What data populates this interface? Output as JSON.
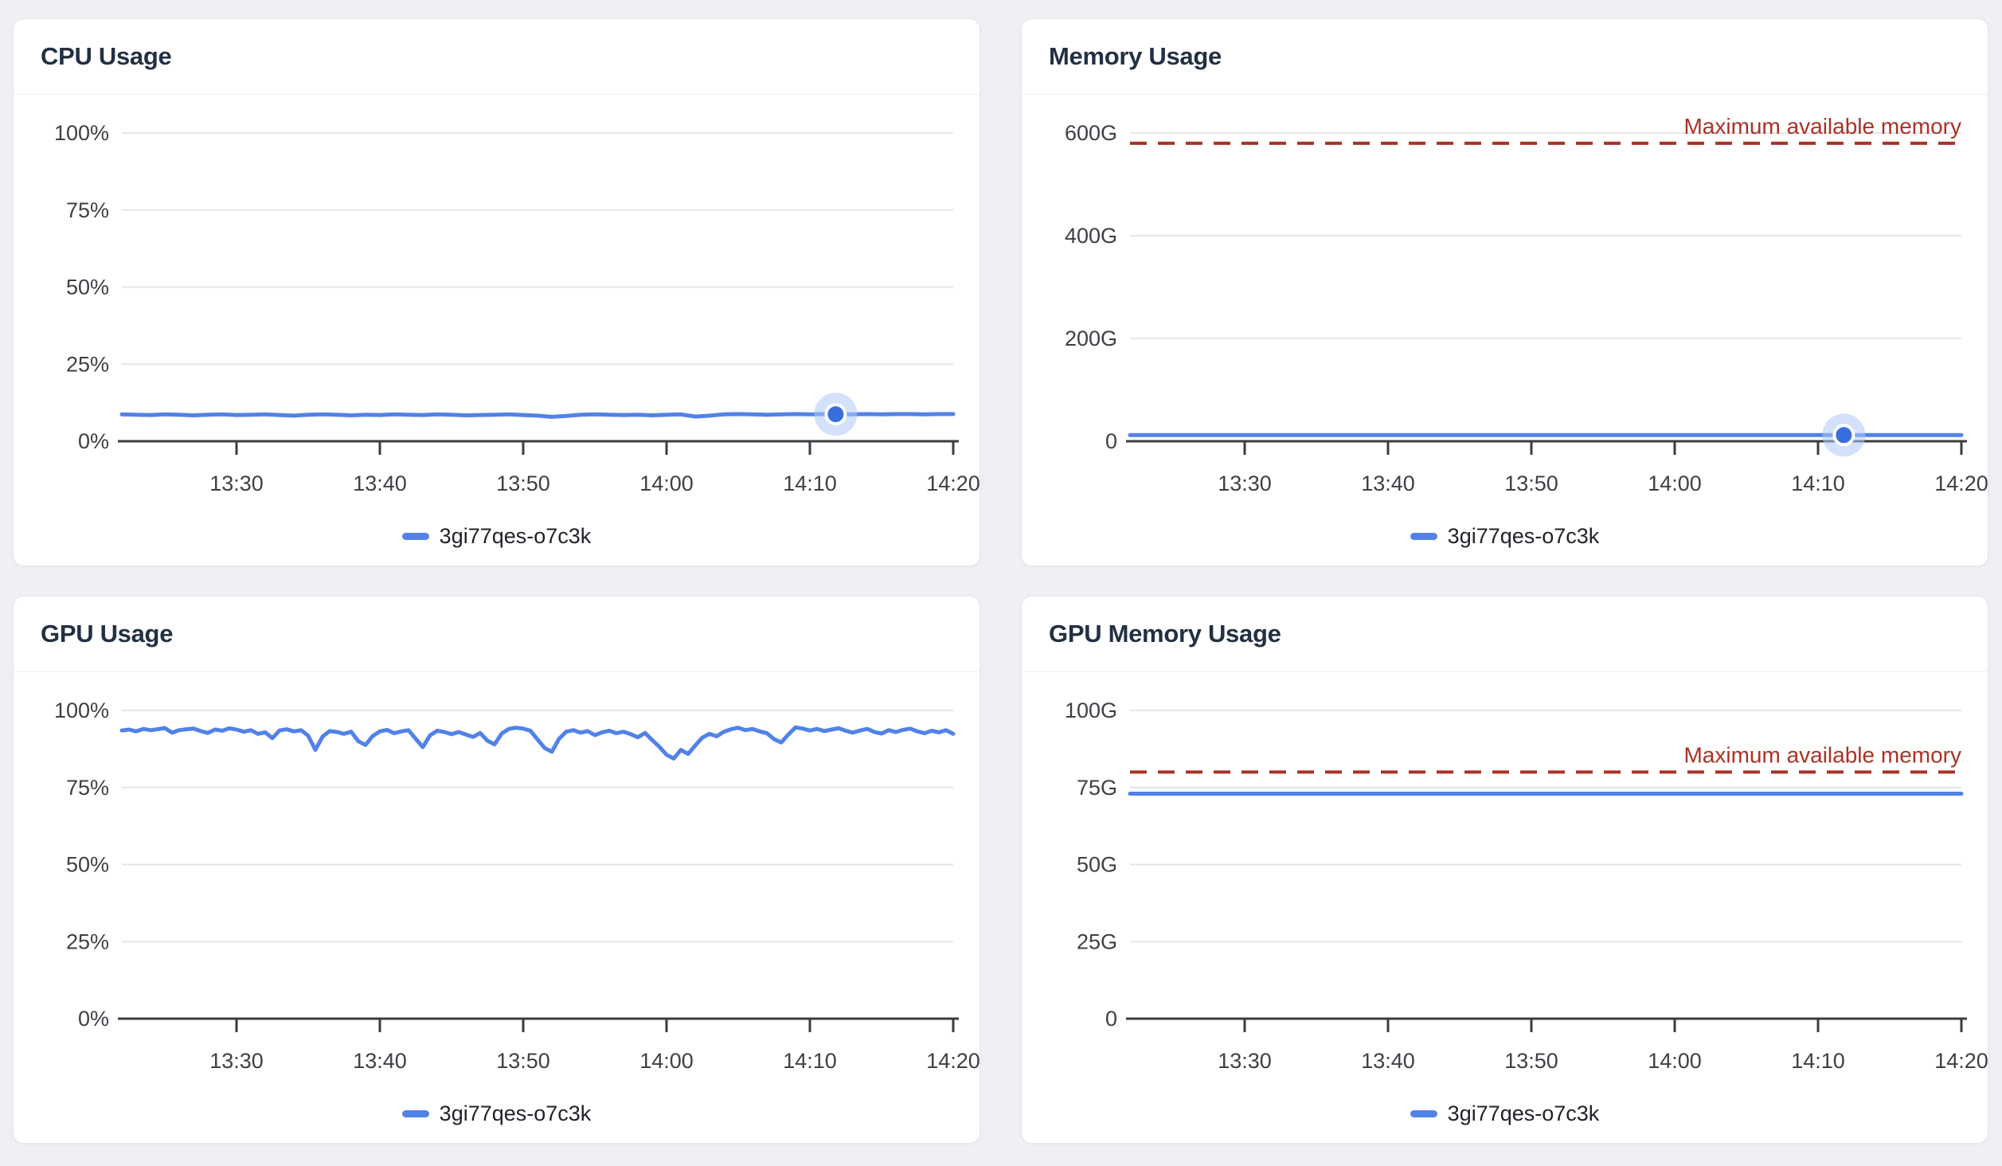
{
  "page": {
    "background": "#eff0f3"
  },
  "styles": {
    "accent_blue": "#5282e8",
    "halo_blue": "#aec8f5",
    "dot_blue": "#3a6edc",
    "grid_color": "#e4e6e9",
    "axis_color": "#3a3d41",
    "axis_text_color": "#3d4045",
    "max_red": "#a93226",
    "title_color": "#223043"
  },
  "chart_data": [
    {
      "id": "cpu-usage",
      "type": "line",
      "title": "CPU Usage",
      "ylabel": "",
      "xlabel": "",
      "ylim": [
        0,
        100
      ],
      "grid": true,
      "legend_position": "bottom",
      "yticks": [
        {
          "v": 0,
          "label": "0%"
        },
        {
          "v": 25,
          "label": "25%"
        },
        {
          "v": 50,
          "label": "50%"
        },
        {
          "v": 75,
          "label": "75%"
        },
        {
          "v": 100,
          "label": "100%"
        }
      ],
      "xticks": [
        {
          "t": 8,
          "label": "13:30"
        },
        {
          "t": 18,
          "label": "13:40"
        },
        {
          "t": 28,
          "label": "13:50"
        },
        {
          "t": 38,
          "label": "14:00"
        },
        {
          "t": 48,
          "label": "14:10"
        },
        {
          "t": 58,
          "label": "14:20"
        }
      ],
      "series": [
        {
          "name": "3gi77qes-o7c3k",
          "color": "#5282e8",
          "values": [
            8.7,
            8.6,
            8.5,
            8.7,
            8.6,
            8.4,
            8.6,
            8.7,
            8.5,
            8.6,
            8.7,
            8.5,
            8.3,
            8.6,
            8.7,
            8.6,
            8.4,
            8.6,
            8.5,
            8.7,
            8.6,
            8.5,
            8.7,
            8.6,
            8.4,
            8.5,
            8.6,
            8.7,
            8.5,
            8.3,
            7.9,
            8.2,
            8.6,
            8.7,
            8.6,
            8.5,
            8.6,
            8.4,
            8.6,
            8.7,
            8.0,
            8.3,
            8.7,
            8.8,
            8.7,
            8.6,
            8.7,
            8.8,
            8.7,
            8.8,
            8.8,
            8.7,
            8.8,
            8.7,
            8.8,
            8.8,
            8.7,
            8.8,
            8.8
          ]
        }
      ],
      "highlight": {
        "t": 49.8,
        "value": 8.75
      }
    },
    {
      "id": "memory-usage",
      "type": "line",
      "title": "Memory Usage",
      "ylabel": "",
      "xlabel": "",
      "ylim": [
        0,
        600
      ],
      "grid": true,
      "legend_position": "bottom",
      "yticks": [
        {
          "v": 0,
          "label": "0"
        },
        {
          "v": 200,
          "label": "200G"
        },
        {
          "v": 400,
          "label": "400G"
        },
        {
          "v": 600,
          "label": "600G"
        }
      ],
      "xticks": [
        {
          "t": 8,
          "label": "13:30"
        },
        {
          "t": 18,
          "label": "13:40"
        },
        {
          "t": 28,
          "label": "13:50"
        },
        {
          "t": 38,
          "label": "14:00"
        },
        {
          "t": 48,
          "label": "14:10"
        },
        {
          "t": 58,
          "label": "14:20"
        }
      ],
      "max_line": {
        "value": 580,
        "label": "Maximum available memory",
        "color": "#a93226"
      },
      "series": [
        {
          "name": "3gi77qes-o7c3k",
          "color": "#5282e8",
          "values": [
            12,
            12
          ]
        }
      ],
      "highlight": {
        "t": 49.8,
        "value": 12
      }
    },
    {
      "id": "gpu-usage",
      "type": "line",
      "title": "GPU Usage",
      "ylabel": "",
      "xlabel": "",
      "ylim": [
        0,
        100
      ],
      "grid": true,
      "legend_position": "bottom",
      "yticks": [
        {
          "v": 0,
          "label": "0%"
        },
        {
          "v": 25,
          "label": "25%"
        },
        {
          "v": 50,
          "label": "50%"
        },
        {
          "v": 75,
          "label": "75%"
        },
        {
          "v": 100,
          "label": "100%"
        }
      ],
      "xticks": [
        {
          "t": 8,
          "label": "13:30"
        },
        {
          "t": 18,
          "label": "13:40"
        },
        {
          "t": 28,
          "label": "13:50"
        },
        {
          "t": 38,
          "label": "14:00"
        },
        {
          "t": 48,
          "label": "14:10"
        },
        {
          "t": 58,
          "label": "14:20"
        }
      ],
      "series": [
        {
          "name": "3gi77qes-o7c3k",
          "color": "#5282e8",
          "values": [
            93.5,
            93.8,
            93.2,
            94.0,
            93.6,
            93.9,
            94.3,
            92.8,
            93.6,
            93.9,
            94.1,
            93.3,
            92.7,
            93.8,
            93.4,
            94.2,
            93.8,
            93.1,
            93.6,
            92.4,
            92.9,
            91.0,
            93.5,
            93.9,
            93.2,
            93.6,
            91.8,
            87.2,
            91.5,
            93.3,
            93.0,
            92.4,
            93.1,
            90.0,
            88.8,
            91.7,
            93.2,
            93.7,
            92.6,
            93.2,
            93.6,
            90.8,
            88.1,
            91.9,
            93.4,
            93.0,
            92.3,
            93.0,
            92.2,
            91.4,
            92.7,
            90.2,
            89.0,
            92.5,
            94.0,
            94.4,
            94.1,
            93.4,
            90.6,
            87.8,
            86.6,
            90.8,
            93.1,
            93.6,
            92.8,
            93.3,
            92.0,
            92.9,
            93.4,
            92.6,
            93.1,
            92.3,
            91.3,
            92.7,
            90.4,
            88.2,
            85.6,
            84.4,
            87.2,
            85.9,
            88.6,
            91.2,
            92.4,
            91.6,
            93.1,
            93.9,
            94.4,
            93.6,
            94.0,
            93.2,
            92.6,
            90.7,
            89.6,
            92.2,
            94.5,
            94.1,
            93.5,
            94.0,
            93.3,
            93.8,
            94.2,
            93.4,
            92.8,
            93.5,
            94.0,
            93.0,
            92.5,
            93.6,
            93.0,
            93.7,
            94.1,
            93.2,
            92.6,
            93.4,
            92.9,
            93.6,
            92.4
          ]
        }
      ]
    },
    {
      "id": "gpu-memory-usage",
      "type": "line",
      "title": "GPU Memory Usage",
      "ylabel": "",
      "xlabel": "",
      "ylim": [
        0,
        100
      ],
      "grid": true,
      "legend_position": "bottom",
      "yticks": [
        {
          "v": 0,
          "label": "0"
        },
        {
          "v": 25,
          "label": "25G"
        },
        {
          "v": 50,
          "label": "50G"
        },
        {
          "v": 75,
          "label": "75G"
        },
        {
          "v": 100,
          "label": "100G"
        }
      ],
      "xticks": [
        {
          "t": 8,
          "label": "13:30"
        },
        {
          "t": 18,
          "label": "13:40"
        },
        {
          "t": 28,
          "label": "13:50"
        },
        {
          "t": 38,
          "label": "14:00"
        },
        {
          "t": 48,
          "label": "14:10"
        },
        {
          "t": 58,
          "label": "14:20"
        }
      ],
      "max_line": {
        "value": 80,
        "label": "Maximum available memory",
        "color": "#a93226"
      },
      "series": [
        {
          "name": "3gi77qes-o7c3k",
          "color": "#5282e8",
          "values": [
            73,
            73
          ]
        }
      ]
    }
  ]
}
